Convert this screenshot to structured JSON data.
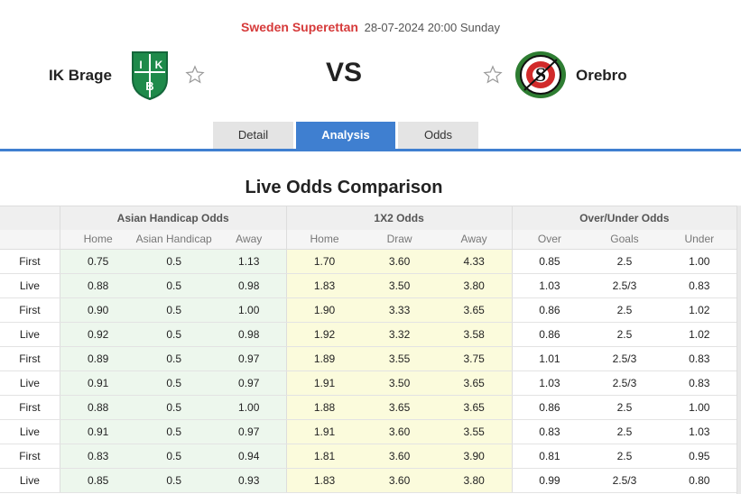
{
  "match": {
    "league": "Sweden Superettan",
    "datetime": "28-07-2024 20:00 Sunday",
    "home_team": "IK Brage",
    "away_team": "Orebro",
    "vs_label": "VS",
    "home_logo_icon": "ik-brage-crest-icon",
    "away_logo_icon": "orebro-crest-icon",
    "colors": {
      "league": "#d63a3a",
      "accent": "#3f7fd0",
      "home_green": "#1e8a4a",
      "away_red": "#d12a2a"
    }
  },
  "tabs": [
    {
      "label": "Detail",
      "active": false
    },
    {
      "label": "Analysis",
      "active": true
    },
    {
      "label": "Odds",
      "active": false
    }
  ],
  "section_title": "Live Odds Comparison",
  "table": {
    "groups": [
      "Asian Handicap Odds",
      "1X2 Odds",
      "Over/Under Odds"
    ],
    "columns": [
      "Home",
      "Asian Handicap",
      "Away",
      "Home",
      "Draw",
      "Away",
      "Over",
      "Goals",
      "Under"
    ],
    "rows": [
      {
        "type": "First",
        "values": [
          "0.75",
          "0.5",
          "1.13",
          "1.70",
          "3.60",
          "4.33",
          "0.85",
          "2.5",
          "1.00"
        ]
      },
      {
        "type": "Live",
        "values": [
          "0.88",
          "0.5",
          "0.98",
          "1.83",
          "3.50",
          "3.80",
          "1.03",
          "2.5/3",
          "0.83"
        ]
      },
      {
        "type": "First",
        "values": [
          "0.90",
          "0.5",
          "1.00",
          "1.90",
          "3.33",
          "3.65",
          "0.86",
          "2.5",
          "1.02"
        ]
      },
      {
        "type": "Live",
        "values": [
          "0.92",
          "0.5",
          "0.98",
          "1.92",
          "3.32",
          "3.58",
          "0.86",
          "2.5",
          "1.02"
        ]
      },
      {
        "type": "First",
        "values": [
          "0.89",
          "0.5",
          "0.97",
          "1.89",
          "3.55",
          "3.75",
          "1.01",
          "2.5/3",
          "0.83"
        ]
      },
      {
        "type": "Live",
        "values": [
          "0.91",
          "0.5",
          "0.97",
          "1.91",
          "3.50",
          "3.65",
          "1.03",
          "2.5/3",
          "0.83"
        ]
      },
      {
        "type": "First",
        "values": [
          "0.88",
          "0.5",
          "1.00",
          "1.88",
          "3.65",
          "3.65",
          "0.86",
          "2.5",
          "1.00"
        ]
      },
      {
        "type": "Live",
        "values": [
          "0.91",
          "0.5",
          "0.97",
          "1.91",
          "3.60",
          "3.55",
          "0.83",
          "2.5",
          "1.03"
        ]
      },
      {
        "type": "First",
        "values": [
          "0.83",
          "0.5",
          "0.94",
          "1.81",
          "3.60",
          "3.90",
          "0.81",
          "2.5",
          "0.95"
        ]
      },
      {
        "type": "Live",
        "values": [
          "0.85",
          "0.5",
          "0.93",
          "1.83",
          "3.60",
          "3.80",
          "0.99",
          "2.5/3",
          "0.80"
        ]
      }
    ]
  }
}
